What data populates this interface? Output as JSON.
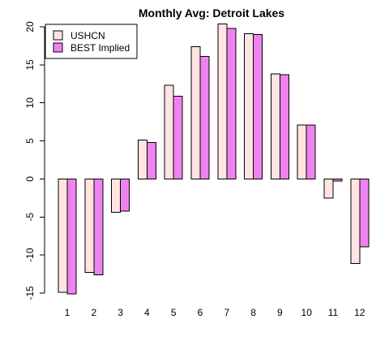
{
  "chart_data": {
    "type": "bar",
    "title": "Monthly Avg: Detroit Lakes",
    "xlabel": "",
    "ylabel": "",
    "categories": [
      "1",
      "2",
      "3",
      "4",
      "5",
      "6",
      "7",
      "8",
      "9",
      "10",
      "11",
      "12"
    ],
    "series": [
      {
        "name": "USHCN",
        "color": "#ffe4e1",
        "values": [
          -14.9,
          -12.3,
          -4.4,
          5.1,
          12.3,
          17.4,
          20.4,
          19.1,
          13.8,
          7.1,
          -2.5,
          -11.1
        ]
      },
      {
        "name": "BEST Implied",
        "color": "#ee82ee",
        "values": [
          -15.1,
          -12.6,
          -4.2,
          4.8,
          10.9,
          16.1,
          19.8,
          19.0,
          13.7,
          7.1,
          -0.3,
          -8.9
        ]
      }
    ],
    "ylim": [
      -15,
      20
    ],
    "yticks": [
      -15,
      -10,
      -5,
      0,
      5,
      10,
      15,
      20
    ],
    "grid": false,
    "legend": "top-left"
  }
}
